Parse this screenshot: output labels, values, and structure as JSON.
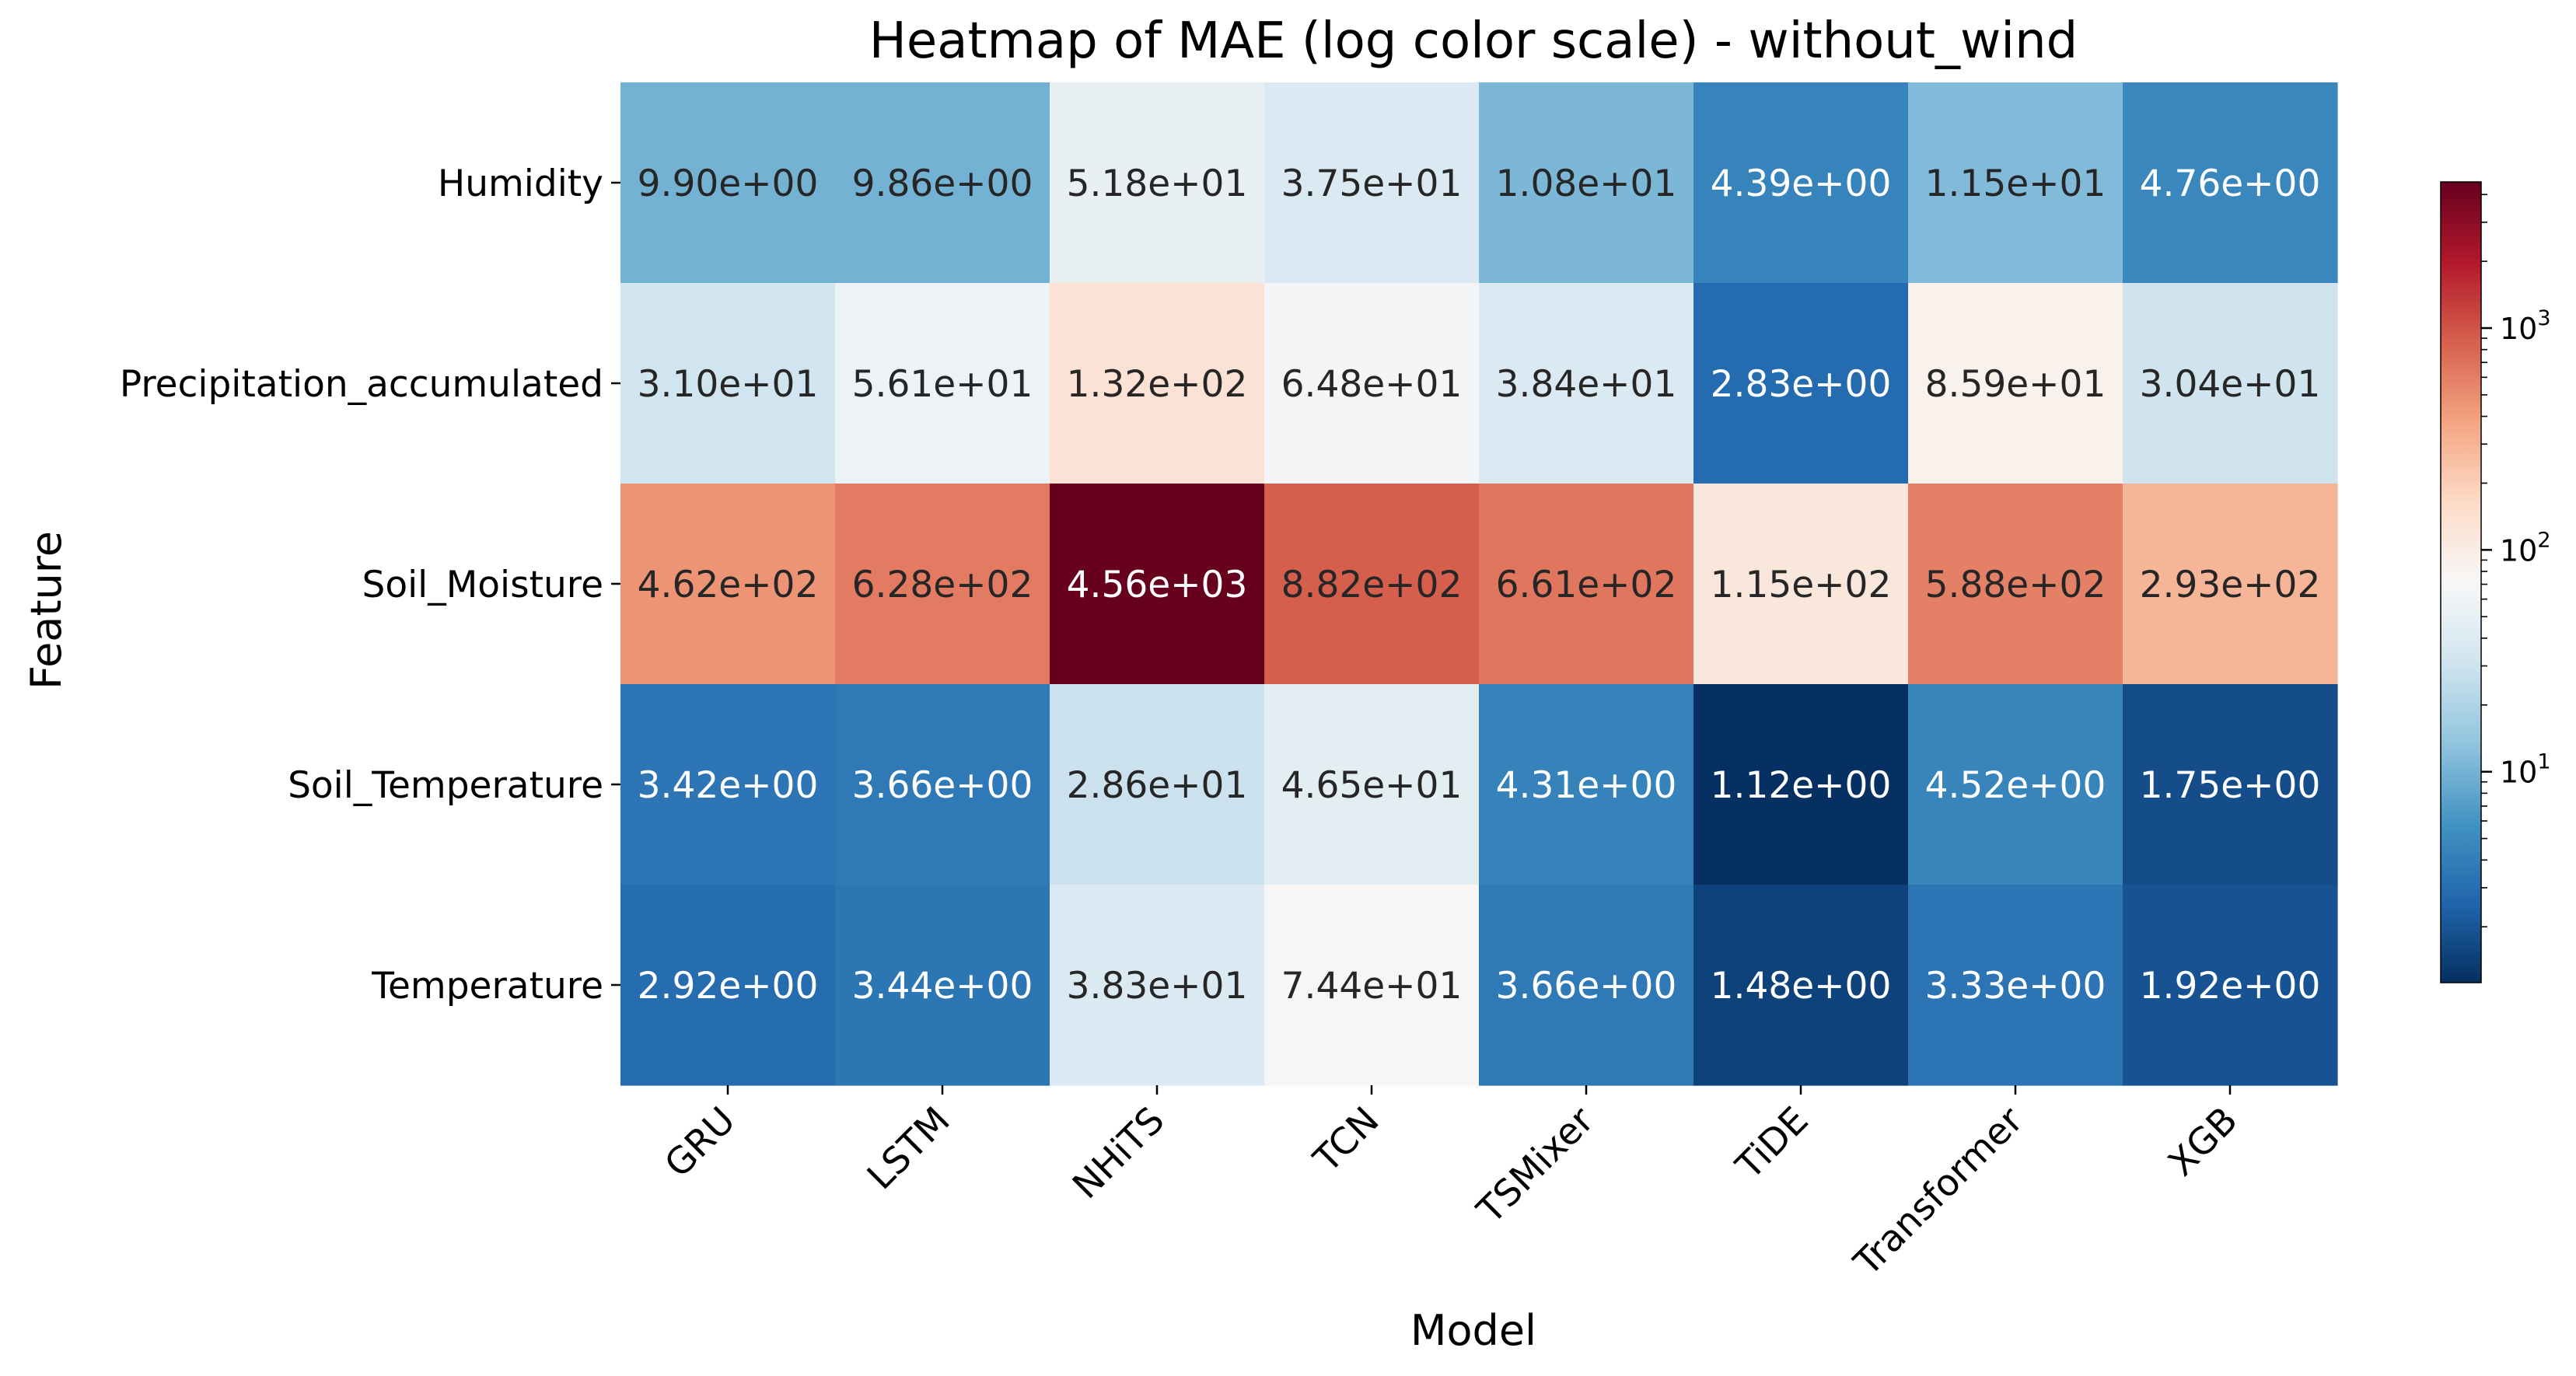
{
  "chart_data": {
    "type": "heatmap",
    "title": "Heatmap of MAE (log color scale) - without_wind",
    "xlabel": "Model",
    "ylabel": "Feature",
    "x": [
      "GRU",
      "LSTM",
      "NHiTS",
      "TCN",
      "TSMixer",
      "TiDE",
      "Transformer",
      "XGB"
    ],
    "y": [
      "Humidity",
      "Precipitation_accumulated",
      "Soil_Moisture",
      "Soil_Temperature",
      "Temperature"
    ],
    "values": [
      [
        9.9,
        9.86,
        51.8,
        37.5,
        10.8,
        4.39,
        11.5,
        4.76
      ],
      [
        31.0,
        56.1,
        132,
        64.8,
        38.4,
        2.83,
        85.9,
        30.4
      ],
      [
        462,
        628,
        4560,
        882,
        661,
        115,
        588,
        293
      ],
      [
        3.42,
        3.66,
        28.6,
        46.5,
        4.31,
        1.12,
        4.52,
        1.75
      ],
      [
        2.92,
        3.44,
        38.3,
        74.4,
        3.66,
        1.48,
        3.33,
        1.92
      ]
    ],
    "cell_labels": [
      [
        "9.90e+00",
        "9.86e+00",
        "5.18e+01",
        "3.75e+01",
        "1.08e+01",
        "4.39e+00",
        "1.15e+01",
        "4.76e+00"
      ],
      [
        "3.10e+01",
        "5.61e+01",
        "1.32e+02",
        "6.48e+01",
        "3.84e+01",
        "2.83e+00",
        "8.59e+01",
        "3.04e+01"
      ],
      [
        "4.62e+02",
        "6.28e+02",
        "4.56e+03",
        "8.82e+02",
        "6.61e+02",
        "1.15e+02",
        "5.88e+02",
        "2.93e+02"
      ],
      [
        "3.42e+00",
        "3.66e+00",
        "2.86e+01",
        "4.65e+01",
        "4.31e+00",
        "1.12e+00",
        "4.52e+00",
        "1.75e+00"
      ],
      [
        "2.92e+00",
        "3.44e+00",
        "3.83e+01",
        "7.44e+01",
        "3.66e+00",
        "1.48e+00",
        "3.33e+00",
        "1.92e+00"
      ]
    ],
    "colorbar": {
      "scale": "log",
      "range": [
        1.12,
        4560
      ],
      "colormap": "RdBu_r",
      "ticks": [
        10,
        100,
        1000
      ],
      "tick_labels": [
        "10",
        "10",
        "10"
      ],
      "tick_exponents": [
        "1",
        "2",
        "3"
      ]
    },
    "colormap_stops": [
      "#053061",
      "#2166ac",
      "#4393c3",
      "#92c5de",
      "#d1e5f0",
      "#f7f7f7",
      "#fddbc7",
      "#f4a582",
      "#d6604d",
      "#b2182b",
      "#67001f"
    ],
    "text_colors": {
      "light": "#ffffff",
      "dark": "#262626"
    },
    "grid": false,
    "legend": "none"
  }
}
